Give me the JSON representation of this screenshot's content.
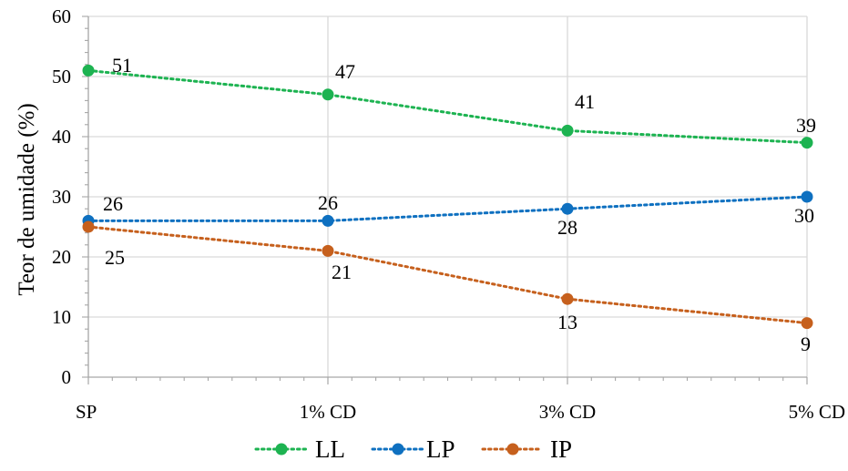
{
  "chart_data": {
    "type": "line",
    "title": "",
    "xlabel": "",
    "ylabel": "Teor de umidade  (%)",
    "categories": [
      "SP",
      "1% CD",
      "3% CD",
      "5% CD"
    ],
    "ylim": [
      0,
      60
    ],
    "yticks": [
      0,
      10,
      20,
      30,
      40,
      50,
      60
    ],
    "grid": true,
    "legend_position": "bottom",
    "series": [
      {
        "name": "LL",
        "values": [
          51,
          47,
          41,
          39
        ],
        "color": "#1DB351",
        "line_style": "dotted",
        "marker": "circle"
      },
      {
        "name": "LP",
        "values": [
          26,
          26,
          28,
          30
        ],
        "color": "#0E70C0",
        "line_style": "dotted",
        "marker": "circle"
      },
      {
        "name": "IP",
        "values": [
          25,
          21,
          13,
          9
        ],
        "color": "#C6601D",
        "line_style": "dotted",
        "marker": "circle"
      }
    ]
  }
}
